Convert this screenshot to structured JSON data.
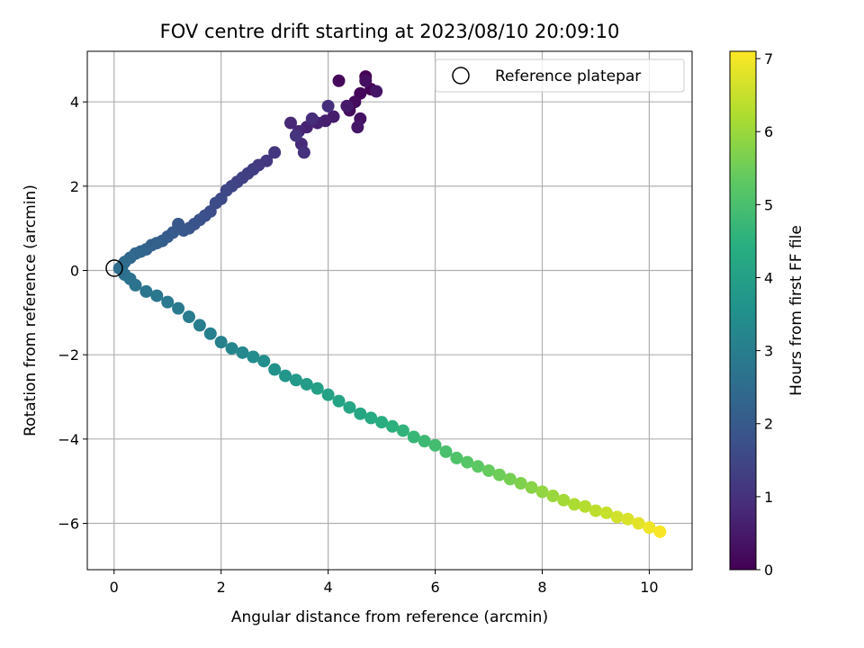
{
  "chart_data": {
    "type": "scatter",
    "title": "FOV centre drift starting at 2023/08/10 20:09:10",
    "xlabel": "Angular distance from reference (arcmin)",
    "ylabel": "Rotation from reference (arcmin)",
    "xlim": [
      -0.5,
      10.8
    ],
    "ylim": [
      -7.1,
      5.2
    ],
    "x_ticks": [
      0,
      2,
      4,
      6,
      8,
      10
    ],
    "y_ticks": [
      -6,
      -4,
      -2,
      0,
      2,
      4
    ],
    "grid": true,
    "legend": {
      "position": "top-right",
      "entries": [
        "Reference platepar"
      ]
    },
    "reference_point": {
      "x": 0,
      "y": 0,
      "label": "Reference platepar"
    },
    "colorbar": {
      "label": "Hours from first FF file",
      "colormap": "viridis",
      "range": [
        0,
        7.1
      ],
      "ticks": [
        0,
        1,
        2,
        3,
        4,
        5,
        6,
        7
      ]
    },
    "series": [
      {
        "x": [
          4.7,
          4.8,
          4.6,
          4.2,
          4.5,
          4.4,
          4.7,
          4.6,
          4.9,
          4.55,
          4.35,
          4.1,
          3.95,
          3.8,
          3.6,
          3.45,
          3.3,
          3.5,
          3.7,
          4.0,
          3.55,
          3.4
        ],
        "y": [
          4.6,
          4.3,
          4.2,
          4.5,
          4.0,
          3.8,
          4.5,
          3.6,
          4.25,
          3.4,
          3.9,
          3.65,
          3.55,
          3.5,
          3.4,
          3.3,
          3.5,
          3.0,
          3.6,
          3.9,
          2.8,
          3.2
        ],
        "t": [
          0.0,
          0.05,
          0.1,
          0.15,
          0.2,
          0.25,
          0.3,
          0.35,
          0.4,
          0.45,
          0.5,
          0.55,
          0.6,
          0.65,
          0.7,
          0.75,
          0.8,
          0.85,
          0.9,
          0.95,
          1.0,
          1.05
        ]
      },
      {
        "x": [
          3.0,
          2.85,
          2.7,
          2.6,
          2.5,
          2.4,
          2.3,
          2.2,
          2.1,
          2.0,
          1.9,
          1.8,
          1.7,
          1.6,
          1.5,
          1.4,
          1.3,
          1.2,
          1.1,
          1.0,
          0.9,
          0.8,
          0.7,
          0.6,
          0.5,
          0.4,
          0.3,
          0.2,
          0.15,
          0.1
        ],
        "y": [
          2.8,
          2.6,
          2.5,
          2.4,
          2.3,
          2.2,
          2.1,
          2.0,
          1.9,
          1.7,
          1.6,
          1.4,
          1.3,
          1.2,
          1.1,
          1.0,
          0.95,
          1.1,
          0.9,
          0.8,
          0.7,
          0.65,
          0.6,
          0.5,
          0.45,
          0.4,
          0.3,
          0.2,
          0.1,
          0.05
        ],
        "t": [
          1.1,
          1.15,
          1.2,
          1.25,
          1.3,
          1.35,
          1.4,
          1.45,
          1.5,
          1.55,
          1.6,
          1.65,
          1.7,
          1.75,
          1.8,
          1.85,
          1.9,
          1.95,
          2.0,
          2.05,
          2.1,
          2.15,
          2.2,
          2.25,
          2.3,
          2.35,
          2.4,
          2.45,
          2.5,
          2.55
        ]
      },
      {
        "x": [
          0.2,
          0.3,
          0.4,
          0.6,
          0.8,
          1.0,
          1.2,
          1.4,
          1.6,
          1.8,
          2.0,
          2.2,
          2.4,
          2.6,
          2.8,
          3.0,
          3.2,
          3.4,
          3.6,
          3.8,
          4.0,
          4.2,
          4.4,
          4.6,
          4.8,
          5.0,
          5.2,
          5.4,
          5.6,
          5.8,
          6.0,
          6.2,
          6.4,
          6.6,
          6.8,
          7.0,
          7.2,
          7.4,
          7.6,
          7.8,
          8.0,
          8.2,
          8.4,
          8.6,
          8.8,
          9.0,
          9.2,
          9.4,
          9.6,
          9.8,
          10.0,
          10.2
        ],
        "y": [
          -0.1,
          -0.2,
          -0.35,
          -0.5,
          -0.6,
          -0.75,
          -0.9,
          -1.1,
          -1.3,
          -1.5,
          -1.7,
          -1.85,
          -1.95,
          -2.05,
          -2.15,
          -2.35,
          -2.5,
          -2.6,
          -2.7,
          -2.8,
          -2.95,
          -3.1,
          -3.25,
          -3.4,
          -3.5,
          -3.6,
          -3.7,
          -3.8,
          -3.95,
          -4.05,
          -4.15,
          -4.3,
          -4.45,
          -4.55,
          -4.65,
          -4.75,
          -4.85,
          -4.95,
          -5.05,
          -5.15,
          -5.25,
          -5.35,
          -5.45,
          -5.55,
          -5.6,
          -5.7,
          -5.75,
          -5.85,
          -5.9,
          -6.0,
          -6.1,
          -6.2
        ],
        "t": [
          2.6,
          2.65,
          2.7,
          2.75,
          2.8,
          2.85,
          2.9,
          2.95,
          3.0,
          3.05,
          3.1,
          3.2,
          3.3,
          3.4,
          3.5,
          3.6,
          3.7,
          3.8,
          3.9,
          4.0,
          4.05,
          4.1,
          4.15,
          4.2,
          4.3,
          4.4,
          4.5,
          4.6,
          4.7,
          4.8,
          4.9,
          5.0,
          5.1,
          5.2,
          5.3,
          5.4,
          5.5,
          5.6,
          5.7,
          5.8,
          5.9,
          6.0,
          6.1,
          6.2,
          6.3,
          6.4,
          6.5,
          6.6,
          6.7,
          6.8,
          6.95,
          7.05
        ]
      }
    ]
  }
}
